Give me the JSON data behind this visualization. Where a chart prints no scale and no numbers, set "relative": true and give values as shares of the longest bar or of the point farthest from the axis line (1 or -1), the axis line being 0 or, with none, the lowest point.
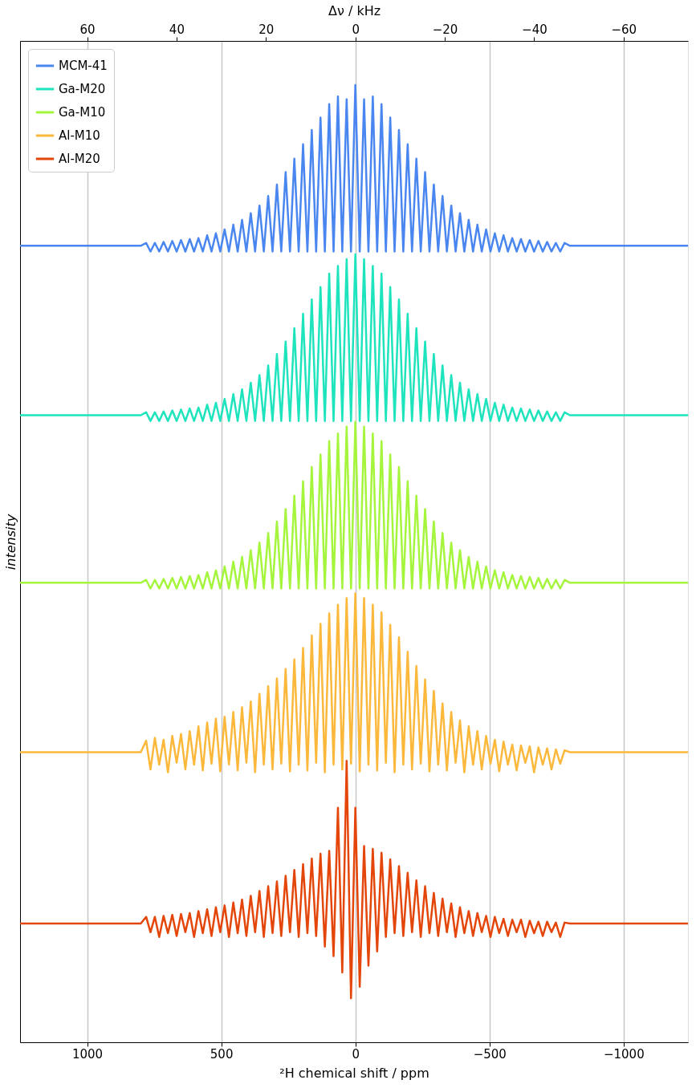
{
  "chart_data": {
    "type": "line",
    "relative": true,
    "xlabel": "²H chemical shift / ppm",
    "x2label": "Δν / kHz",
    "ylabel": "intensity",
    "xlim": [
      1250,
      -1240
    ],
    "xticks": [
      1000,
      500,
      0,
      {
        "value": -500,
        "label": "−500"
      },
      {
        "value": -1000,
        "label": "−1000"
      }
    ],
    "x2lim": [
      75,
      -74.4
    ],
    "x2ticks": [
      60,
      40,
      20,
      0,
      {
        "value": -20,
        "label": "−20"
      },
      {
        "value": -40,
        "label": "−40"
      },
      {
        "value": -60,
        "label": "−60"
      }
    ],
    "grid": "x",
    "legend": "top left",
    "tick_labels": "x",
    "line_style": "solid",
    "marker": "none",
    "x": [
      1250,
      1000,
      800,
      780,
      763.75,
      747.5,
      731.25,
      715,
      698.75,
      682.5,
      666.25,
      650,
      633.75,
      617.5,
      601.25,
      585,
      568.75,
      552.5,
      536.25,
      520,
      503.75,
      487.5,
      471.25,
      455,
      438.75,
      422.5,
      406.25,
      390,
      373.75,
      357.5,
      341.25,
      325,
      308.75,
      292.5,
      276.25,
      260,
      243.75,
      227.5,
      211.25,
      195,
      178.75,
      162.5,
      146.25,
      130,
      113.75,
      97.5,
      81.25,
      65,
      48.75,
      32.5,
      16.25,
      0,
      -16.25,
      -32.5,
      -48.75,
      -65,
      -81.25,
      -97.5,
      -113.75,
      -130,
      -146.25,
      -162.5,
      -178.75,
      -195,
      -211.25,
      -227.5,
      -243.75,
      -260,
      -276.25,
      -292.5,
      -308.75,
      -325,
      -341.25,
      -357.5,
      -373.75,
      -390,
      -406.25,
      -422.5,
      -438.75,
      -455,
      -471.25,
      -487.5,
      -503.75,
      -520,
      -536.25,
      -552.5,
      -568.75,
      -585,
      -601.25,
      -617.5,
      -633.75,
      -650,
      -666.25,
      -682.5,
      -698.75,
      -715,
      -731.25,
      -747.5,
      -763.75,
      -780,
      -800,
      -1000,
      -1240
    ],
    "series": [
      {
        "name": "MCM-41",
        "color": "#4a86f0",
        "values": [
          0.832,
          0.832,
          0.832,
          0.835,
          0.826,
          0.835,
          0.826,
          0.836,
          0.826,
          0.837,
          0.826,
          0.838,
          0.826,
          0.839,
          0.826,
          0.84,
          0.826,
          0.843,
          0.826,
          0.845,
          0.826,
          0.849,
          0.826,
          0.854,
          0.826,
          0.859,
          0.826,
          0.866,
          0.826,
          0.874,
          0.826,
          0.884,
          0.826,
          0.896,
          0.826,
          0.909,
          0.826,
          0.923,
          0.826,
          0.938,
          0.826,
          0.953,
          0.826,
          0.966,
          0.826,
          0.98,
          0.826,
          0.988,
          0.826,
          0.985,
          0.826,
          1.0,
          0.826,
          0.985,
          0.826,
          0.988,
          0.826,
          0.98,
          0.826,
          0.966,
          0.826,
          0.953,
          0.826,
          0.938,
          0.826,
          0.923,
          0.826,
          0.909,
          0.826,
          0.896,
          0.826,
          0.884,
          0.826,
          0.874,
          0.826,
          0.866,
          0.826,
          0.859,
          0.826,
          0.854,
          0.826,
          0.849,
          0.826,
          0.845,
          0.826,
          0.843,
          0.826,
          0.84,
          0.826,
          0.839,
          0.826,
          0.838,
          0.826,
          0.837,
          0.826,
          0.836,
          0.826,
          0.835,
          0.826,
          0.835,
          0.832,
          0.832,
          0.832
        ]
      },
      {
        "name": "Ga-M20",
        "color": "#1de4bd",
        "values": [
          0.655,
          0.655,
          0.655,
          0.658,
          0.649,
          0.658,
          0.649,
          0.659,
          0.649,
          0.66,
          0.649,
          0.661,
          0.649,
          0.662,
          0.649,
          0.663,
          0.649,
          0.666,
          0.649,
          0.668,
          0.649,
          0.672,
          0.649,
          0.677,
          0.649,
          0.682,
          0.649,
          0.689,
          0.649,
          0.697,
          0.649,
          0.707,
          0.649,
          0.719,
          0.649,
          0.732,
          0.649,
          0.746,
          0.649,
          0.761,
          0.649,
          0.776,
          0.649,
          0.789,
          0.649,
          0.803,
          0.649,
          0.811,
          0.649,
          0.818,
          0.649,
          0.823,
          0.649,
          0.818,
          0.649,
          0.811,
          0.649,
          0.803,
          0.649,
          0.789,
          0.649,
          0.776,
          0.649,
          0.761,
          0.649,
          0.746,
          0.649,
          0.732,
          0.649,
          0.719,
          0.649,
          0.707,
          0.649,
          0.697,
          0.649,
          0.689,
          0.649,
          0.682,
          0.649,
          0.677,
          0.649,
          0.672,
          0.649,
          0.668,
          0.649,
          0.666,
          0.649,
          0.663,
          0.649,
          0.662,
          0.649,
          0.661,
          0.649,
          0.66,
          0.649,
          0.659,
          0.649,
          0.658,
          0.649,
          0.658,
          0.655,
          0.655,
          0.655
        ]
      },
      {
        "name": "Ga-M10",
        "color": "#a4f53c",
        "values": [
          0.48,
          0.48,
          0.48,
          0.483,
          0.474,
          0.483,
          0.474,
          0.484,
          0.474,
          0.485,
          0.474,
          0.486,
          0.474,
          0.487,
          0.474,
          0.488,
          0.474,
          0.491,
          0.474,
          0.493,
          0.474,
          0.497,
          0.474,
          0.502,
          0.474,
          0.507,
          0.474,
          0.514,
          0.474,
          0.522,
          0.474,
          0.532,
          0.474,
          0.544,
          0.474,
          0.557,
          0.474,
          0.571,
          0.474,
          0.586,
          0.474,
          0.601,
          0.474,
          0.614,
          0.474,
          0.628,
          0.474,
          0.636,
          0.474,
          0.643,
          0.474,
          0.648,
          0.474,
          0.643,
          0.474,
          0.636,
          0.474,
          0.628,
          0.474,
          0.614,
          0.474,
          0.601,
          0.474,
          0.586,
          0.474,
          0.571,
          0.474,
          0.557,
          0.474,
          0.544,
          0.474,
          0.532,
          0.474,
          0.522,
          0.474,
          0.514,
          0.474,
          0.507,
          0.474,
          0.502,
          0.474,
          0.497,
          0.474,
          0.493,
          0.474,
          0.491,
          0.474,
          0.488,
          0.474,
          0.487,
          0.474,
          0.486,
          0.474,
          0.485,
          0.474,
          0.484,
          0.474,
          0.483,
          0.474,
          0.483,
          0.48,
          0.48,
          0.48
        ]
      },
      {
        "name": "Al-M10",
        "color": "#fbb83b",
        "values": [
          0.303,
          0.303,
          0.303,
          0.315,
          0.285,
          0.318,
          0.29,
          0.316,
          0.282,
          0.32,
          0.292,
          0.322,
          0.285,
          0.325,
          0.29,
          0.33,
          0.284,
          0.334,
          0.291,
          0.338,
          0.283,
          0.34,
          0.29,
          0.345,
          0.284,
          0.35,
          0.292,
          0.356,
          0.282,
          0.364,
          0.29,
          0.372,
          0.285,
          0.38,
          0.291,
          0.39,
          0.283,
          0.4,
          0.29,
          0.412,
          0.284,
          0.425,
          0.292,
          0.437,
          0.282,
          0.448,
          0.29,
          0.457,
          0.285,
          0.464,
          0.291,
          0.469,
          0.283,
          0.464,
          0.29,
          0.457,
          0.284,
          0.449,
          0.292,
          0.436,
          0.282,
          0.423,
          0.29,
          0.408,
          0.285,
          0.393,
          0.291,
          0.379,
          0.283,
          0.367,
          0.29,
          0.354,
          0.284,
          0.345,
          0.292,
          0.336,
          0.282,
          0.33,
          0.29,
          0.325,
          0.285,
          0.32,
          0.291,
          0.316,
          0.283,
          0.314,
          0.29,
          0.311,
          0.284,
          0.31,
          0.292,
          0.309,
          0.282,
          0.308,
          0.29,
          0.307,
          0.285,
          0.306,
          0.291,
          0.305,
          0.303,
          0.303,
          0.303
        ]
      },
      {
        "name": "Al-M20",
        "color": "#e4460a",
        "values": [
          0.124,
          0.124,
          0.124,
          0.131,
          0.115,
          0.131,
          0.11,
          0.132,
          0.114,
          0.133,
          0.111,
          0.134,
          0.115,
          0.135,
          0.11,
          0.137,
          0.114,
          0.139,
          0.111,
          0.141,
          0.115,
          0.143,
          0.11,
          0.146,
          0.114,
          0.149,
          0.111,
          0.153,
          0.115,
          0.158,
          0.11,
          0.163,
          0.114,
          0.168,
          0.111,
          0.174,
          0.115,
          0.18,
          0.11,
          0.186,
          0.114,
          0.192,
          0.111,
          0.197,
          0.1,
          0.2,
          0.09,
          0.245,
          0.073,
          0.294,
          0.046,
          0.245,
          0.058,
          0.205,
          0.08,
          0.202,
          0.095,
          0.198,
          0.11,
          0.191,
          0.114,
          0.184,
          0.111,
          0.177,
          0.115,
          0.169,
          0.11,
          0.163,
          0.114,
          0.156,
          0.111,
          0.15,
          0.115,
          0.145,
          0.11,
          0.141,
          0.114,
          0.137,
          0.111,
          0.135,
          0.115,
          0.132,
          0.11,
          0.131,
          0.114,
          0.129,
          0.111,
          0.128,
          0.115,
          0.128,
          0.11,
          0.127,
          0.114,
          0.126,
          0.111,
          0.126,
          0.115,
          0.125,
          0.11,
          0.125,
          0.124,
          0.124,
          0.124
        ]
      }
    ]
  }
}
